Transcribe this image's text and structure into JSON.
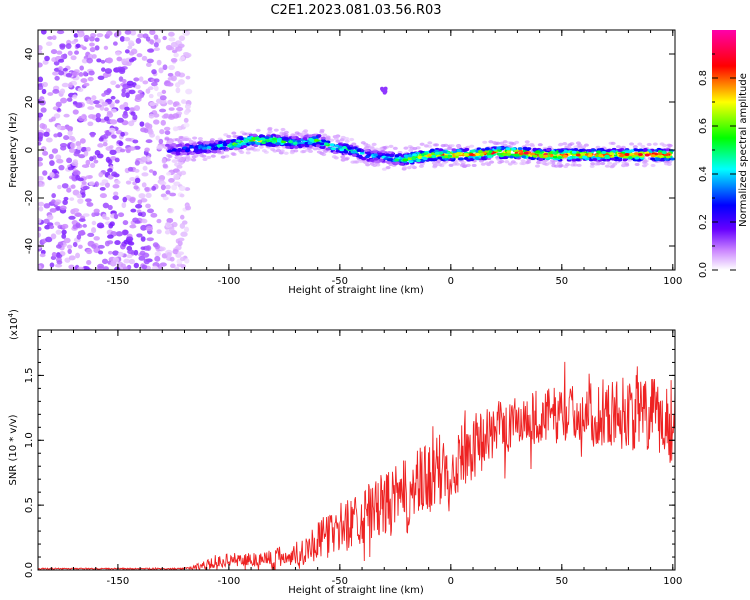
{
  "title": "C2E1.2023.081.03.56.R03",
  "chart_data": [
    {
      "type": "heatmap",
      "name": "spectrogram",
      "xlabel": "Height of straight line (km)",
      "ylabel": "Frequency (Hz)",
      "xlim": [
        -186,
        101
      ],
      "ylim": [
        -50,
        50
      ],
      "xticks": [
        -150,
        -100,
        -50,
        0,
        50,
        100
      ],
      "xtick_labels": [
        "-150",
        "-100",
        "-50",
        "0",
        "50",
        "100"
      ],
      "yticks": [
        -40,
        -20,
        0,
        20,
        40
      ],
      "ytick_labels": [
        "-40",
        "-20",
        "0",
        "20",
        "40"
      ],
      "colorbar": {
        "label": "Normalized spectral amplitude",
        "range": [
          0,
          1
        ],
        "ticks": [
          0.0,
          0.2,
          0.4,
          0.6,
          0.8
        ],
        "tick_labels": [
          "0.0",
          "0.2",
          "0.4",
          "0.6",
          "0.8"
        ],
        "colors": [
          "#ffffff",
          "#cc88ff",
          "#6600ff",
          "#0000ff",
          "#00ffff",
          "#00ff00",
          "#ffff00",
          "#ff0000",
          "#ff00aa"
        ]
      },
      "noise_region_km": [
        -186,
        -118
      ],
      "trace": {
        "x": [
          -128,
          -110,
          -100,
          -90,
          -80,
          -70,
          -60,
          -52,
          -45,
          -38,
          -30,
          -22,
          -15,
          -10,
          0,
          10,
          20,
          30,
          40,
          50,
          60,
          70,
          80,
          90,
          100
        ],
        "y": [
          0,
          1,
          2,
          4,
          4,
          3,
          4,
          1,
          0,
          -2,
          -3,
          -4,
          -3,
          -2,
          -2,
          -2,
          -1,
          -1,
          -2,
          -2,
          -2,
          -2,
          -2,
          -2,
          -2
        ],
        "amplitude": [
          0.3,
          0.45,
          0.55,
          0.75,
          0.65,
          0.5,
          0.6,
          0.55,
          0.55,
          0.5,
          0.45,
          0.6,
          0.8,
          0.75,
          0.8,
          0.85,
          0.85,
          0.9,
          0.85,
          0.9,
          0.85,
          0.8,
          0.85,
          0.9,
          0.85
        ]
      },
      "blip": {
        "x": -30,
        "y": 24
      }
    },
    {
      "type": "line",
      "name": "snr",
      "xlabel": "Height of straight line (km)",
      "ylabel": "SNR (10 * v/v)",
      "y_scale_label": "(x10",
      "y_scale_exp": "4",
      "y_scale_close": ")",
      "xlim": [
        -186,
        101
      ],
      "ylim": [
        0,
        1.85
      ],
      "xticks": [
        -150,
        -100,
        -50,
        0,
        50,
        100
      ],
      "xtick_labels": [
        "-150",
        "-100",
        "-50",
        "0",
        "50",
        "100"
      ],
      "yticks": [
        0.0,
        0.5,
        1.0,
        1.5
      ],
      "ytick_labels": [
        "0.0",
        "0.5",
        "1.0",
        "1.5"
      ],
      "color": "#ee2222",
      "envelope": {
        "x": [
          -186,
          -120,
          -110,
          -100,
          -90,
          -80,
          -70,
          -60,
          -50,
          -40,
          -30,
          -20,
          -10,
          0,
          10,
          20,
          30,
          40,
          50,
          60,
          70,
          80,
          90,
          100
        ],
        "mean": [
          0.01,
          0.01,
          0.04,
          0.08,
          0.08,
          0.09,
          0.12,
          0.22,
          0.32,
          0.42,
          0.5,
          0.56,
          0.7,
          0.82,
          0.95,
          1.08,
          1.15,
          1.18,
          1.2,
          1.22,
          1.2,
          1.22,
          1.18,
          1.15
        ],
        "spread": [
          0.005,
          0.005,
          0.04,
          0.05,
          0.06,
          0.08,
          0.1,
          0.15,
          0.2,
          0.22,
          0.25,
          0.3,
          0.3,
          0.3,
          0.25,
          0.22,
          0.2,
          0.22,
          0.22,
          0.22,
          0.25,
          0.3,
          0.3,
          0.35
        ]
      }
    }
  ]
}
